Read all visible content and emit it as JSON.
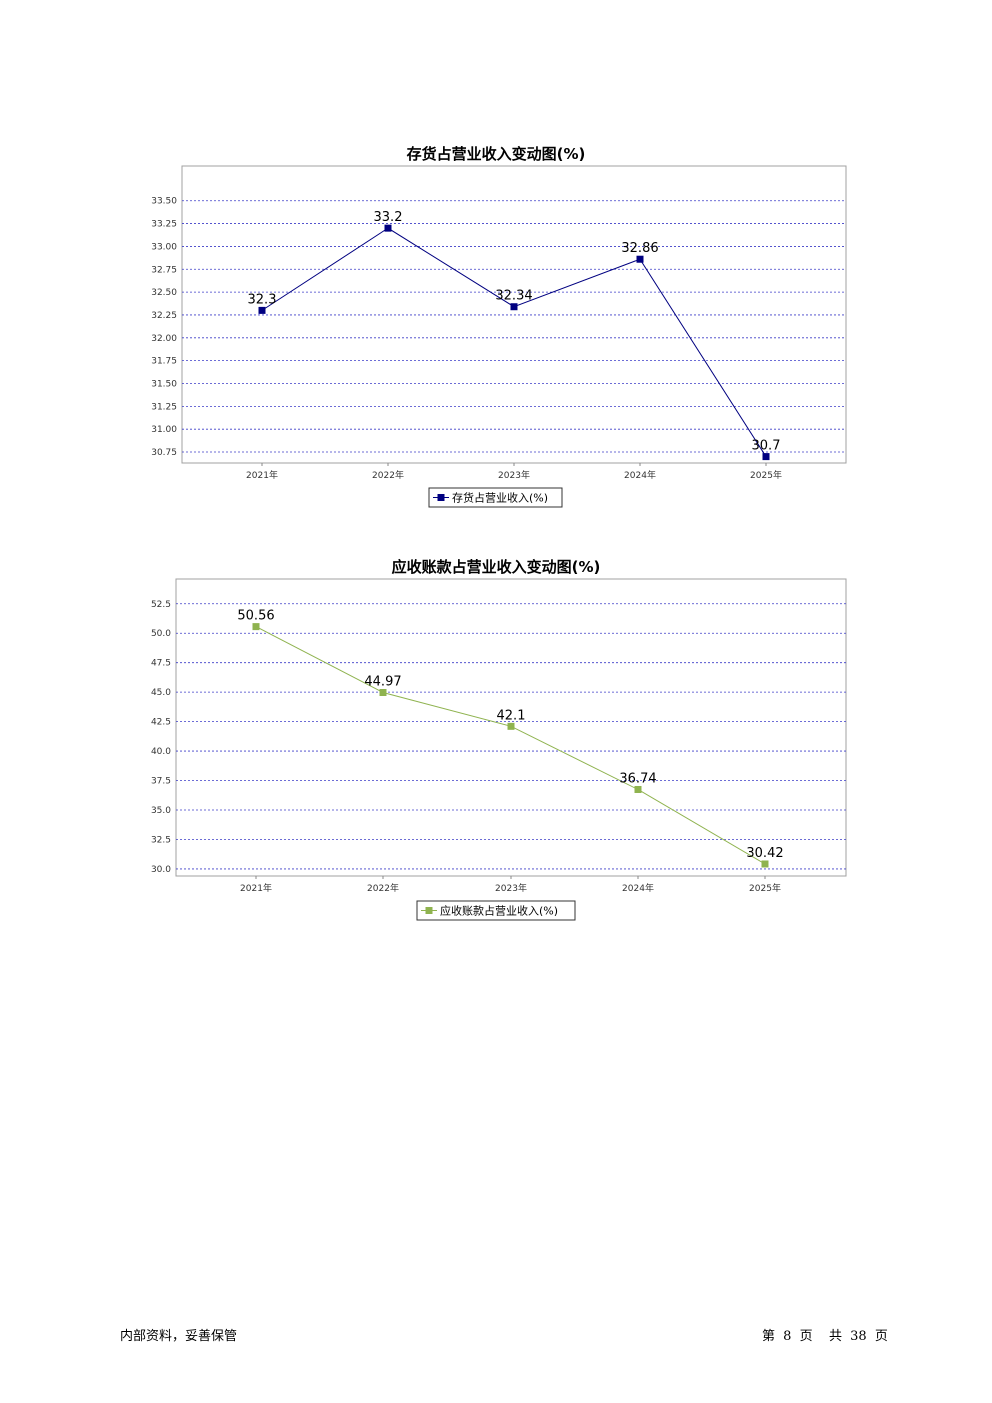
{
  "chart_data": [
    {
      "type": "line",
      "title": "存货占营业收入变动图(%)",
      "categories": [
        "2021年",
        "2022年",
        "2023年",
        "2024年",
        "2025年"
      ],
      "series": [
        {
          "name": "存货占营业收入(%)",
          "values": [
            32.3,
            33.2,
            32.34,
            32.86,
            30.7
          ],
          "labels": [
            "32.3",
            "33.2",
            "32.34",
            "32.86",
            "30.7"
          ],
          "color": "#000080"
        }
      ],
      "ylim": [
        30.63,
        33.88
      ],
      "yticks": [
        30.75,
        31.0,
        31.25,
        31.5,
        31.75,
        32.0,
        32.25,
        32.5,
        32.75,
        33.0,
        33.25,
        33.5
      ],
      "ytick_labels": [
        "30.75",
        "31.00",
        "31.25",
        "31.50",
        "31.75",
        "32.00",
        "32.25",
        "32.50",
        "32.75",
        "33.00",
        "33.25",
        "33.50"
      ],
      "grid": true,
      "legend": "bottom-center"
    },
    {
      "type": "line",
      "title": "应收账款占营业收入变动图(%)",
      "categories": [
        "2021年",
        "2022年",
        "2023年",
        "2024年",
        "2025年"
      ],
      "series": [
        {
          "name": "应收账款占营业收入(%)",
          "values": [
            50.56,
            44.97,
            42.1,
            36.74,
            30.42
          ],
          "labels": [
            "50.56",
            "44.97",
            "42.1",
            "36.74",
            "30.42"
          ],
          "color": "#8fb34f"
        }
      ],
      "ylim": [
        29.4,
        54.6
      ],
      "yticks": [
        30.0,
        32.5,
        35.0,
        37.5,
        40.0,
        42.5,
        45.0,
        47.5,
        50.0,
        52.5
      ],
      "ytick_labels": [
        "30.0",
        "32.5",
        "35.0",
        "37.5",
        "40.0",
        "42.5",
        "45.0",
        "47.5",
        "50.0",
        "52.5"
      ],
      "grid": true,
      "legend": "bottom-center"
    }
  ],
  "footer": {
    "left": "内部资料，妥善保管",
    "page_prefix": "第",
    "page_number": "8",
    "page_suffix": "页",
    "total_prefix": "共",
    "total_pages": "38",
    "total_suffix": "页"
  }
}
